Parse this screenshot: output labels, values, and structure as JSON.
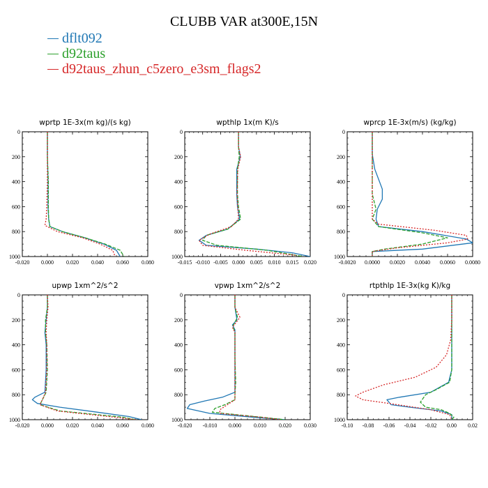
{
  "title": "CLUBB VAR at300E,15N",
  "legend": [
    {
      "name": "dflt092",
      "color": "#1f77b4"
    },
    {
      "name": "d92taus",
      "color": "#2ca02c"
    },
    {
      "name": "d92taus_zhun_c5zero_e3sm_flags2",
      "color": "#d62728"
    }
  ],
  "chart_data": [
    {
      "type": "line",
      "title": "wprtp   1E-3x(m kg)/(s kg)",
      "xlim": [
        -0.02,
        0.08
      ],
      "ylim": [
        1000,
        0
      ],
      "xticks": [
        "-0.020",
        "0.000",
        "0.020",
        "0.040",
        "0.060",
        "0.080"
      ],
      "yticks": [
        "0",
        "200",
        "400",
        "600",
        "800",
        "1000"
      ],
      "series": [
        {
          "points": [
            [
              0.0,
              0
            ],
            [
              0.0,
              200
            ],
            [
              0.0005,
              400
            ],
            [
              0.0005,
              600
            ],
            [
              0.001,
              700
            ],
            [
              0.002,
              760
            ],
            [
              0.012,
              800
            ],
            [
              0.03,
              850
            ],
            [
              0.045,
              900
            ],
            [
              0.055,
              950
            ],
            [
              0.058,
              1000
            ]
          ]
        },
        {
          "points": [
            [
              0.0,
              0
            ],
            [
              0.0,
              200
            ],
            [
              0.0008,
              400
            ],
            [
              0.0008,
              600
            ],
            [
              0.001,
              700
            ],
            [
              0.002,
              760
            ],
            [
              0.012,
              800
            ],
            [
              0.03,
              850
            ],
            [
              0.046,
              900
            ],
            [
              0.058,
              950
            ],
            [
              0.061,
              1000
            ]
          ]
        },
        {
          "points": [
            [
              0.0,
              0
            ],
            [
              0.0,
              200
            ],
            [
              0.0,
              400
            ],
            [
              -0.0005,
              600
            ],
            [
              -0.001,
              700
            ],
            [
              -0.002,
              750
            ],
            [
              0.008,
              800
            ],
            [
              0.028,
              850
            ],
            [
              0.042,
              900
            ],
            [
              0.052,
              950
            ],
            [
              0.054,
              1000
            ]
          ]
        }
      ]
    },
    {
      "type": "line",
      "title": "wpthlp   1x(m K)/s",
      "xlim": [
        -0.015,
        0.02
      ],
      "ylim": [
        1000,
        0
      ],
      "xticks": [
        "-0.015",
        "-0.010",
        "-0.005",
        "0.000",
        "0.005",
        "0.010",
        "0.015",
        "0.020"
      ],
      "yticks": [
        "0",
        "200",
        "400",
        "600",
        "800",
        "1000"
      ],
      "series": [
        {
          "points": [
            [
              0.0,
              0
            ],
            [
              0.0,
              120
            ],
            [
              0.0005,
              200
            ],
            [
              -0.0005,
              300
            ],
            [
              -0.0005,
              500
            ],
            [
              -0.0003,
              600
            ],
            [
              0.0003,
              700
            ],
            [
              -0.003,
              780
            ],
            [
              -0.009,
              830
            ],
            [
              -0.011,
              870
            ],
            [
              -0.009,
              910
            ],
            [
              0.005,
              940
            ],
            [
              0.015,
              970
            ],
            [
              0.02,
              1000
            ]
          ]
        },
        {
          "points": [
            [
              0.0,
              0
            ],
            [
              0.0,
              120
            ],
            [
              0.0002,
              200
            ],
            [
              -0.0003,
              300
            ],
            [
              -0.0003,
              500
            ],
            [
              0.0,
              600
            ],
            [
              0.0006,
              700
            ],
            [
              -0.003,
              780
            ],
            [
              -0.009,
              830
            ],
            [
              -0.01,
              870
            ],
            [
              -0.006,
              910
            ],
            [
              0.008,
              950
            ],
            [
              0.018,
              1000
            ]
          ]
        },
        {
          "points": [
            [
              0.0,
              0
            ],
            [
              0.0,
              120
            ],
            [
              0.0006,
              200
            ],
            [
              -0.0002,
              300
            ],
            [
              -0.0004,
              500
            ],
            [
              -0.0002,
              600
            ],
            [
              0.0,
              700
            ],
            [
              -0.002,
              760
            ],
            [
              -0.008,
              820
            ],
            [
              -0.011,
              870
            ],
            [
              -0.01,
              910
            ],
            [
              0.002,
              950
            ],
            [
              0.016,
              990
            ]
          ]
        }
      ]
    },
    {
      "type": "line",
      "title": "wprcp   1E-3x(m/s) (kg/kg)",
      "xlim": [
        -0.002,
        0.008
      ],
      "ylim": [
        1000,
        0
      ],
      "xticks": [
        "-0.0020",
        "0.0000",
        "0.0020",
        "0.0040",
        "0.0060",
        "0.0080"
      ],
      "yticks": [
        "0",
        "200",
        "400",
        "600",
        "800",
        "1000"
      ],
      "series": [
        {
          "points": [
            [
              0.0,
              0
            ],
            [
              0.0,
              180
            ],
            [
              0.0002,
              300
            ],
            [
              0.0008,
              460
            ],
            [
              0.0008,
              540
            ],
            [
              0.0004,
              620
            ],
            [
              0.0003,
              700
            ],
            [
              0.0005,
              760
            ],
            [
              0.004,
              800
            ],
            [
              0.0075,
              860
            ],
            [
              0.008,
              890
            ],
            [
              0.004,
              940
            ],
            [
              0.0,
              960
            ],
            [
              0.0,
              1000
            ]
          ]
        },
        {
          "points": [
            [
              0.0,
              0
            ],
            [
              0.0,
              180
            ],
            [
              0.0,
              300
            ],
            [
              0.0,
              500
            ],
            [
              0.0003,
              620
            ],
            [
              0.0,
              700
            ],
            [
              0.0005,
              760
            ],
            [
              0.004,
              810
            ],
            [
              0.006,
              850
            ],
            [
              0.004,
              900
            ],
            [
              0.001,
              940
            ],
            [
              0.0,
              960
            ],
            [
              0.0,
              1000
            ]
          ]
        },
        {
          "points": [
            [
              0.0,
              0
            ],
            [
              0.0,
              200
            ],
            [
              0.0,
              400
            ],
            [
              0.0,
              600
            ],
            [
              0.0,
              700
            ],
            [
              0.0005,
              740
            ],
            [
              0.005,
              790
            ],
            [
              0.0075,
              830
            ],
            [
              0.0076,
              860
            ],
            [
              0.006,
              890
            ],
            [
              0.002,
              930
            ],
            [
              0.0,
              960
            ],
            [
              0.0,
              1000
            ]
          ]
        }
      ]
    },
    {
      "type": "line",
      "title": "upwp   1xm^2/s^2",
      "xlim": [
        -0.02,
        0.08
      ],
      "ylim": [
        1000,
        0
      ],
      "xticks": [
        "-0.020",
        "0.000",
        "0.020",
        "0.040",
        "0.060",
        "0.080"
      ],
      "yticks": [
        "0",
        "200",
        "400",
        "600",
        "800",
        "1000"
      ],
      "series": [
        {
          "points": [
            [
              0.0,
              0
            ],
            [
              0.0,
              100
            ],
            [
              -0.001,
              200
            ],
            [
              -0.002,
              300
            ],
            [
              -0.001,
              400
            ],
            [
              -0.001,
              600
            ],
            [
              -0.002,
              780
            ],
            [
              -0.01,
              820
            ],
            [
              -0.012,
              840
            ],
            [
              -0.008,
              870
            ],
            [
              0.01,
              900
            ],
            [
              0.04,
              940
            ],
            [
              0.065,
              975
            ],
            [
              0.075,
              1000
            ]
          ]
        },
        {
          "points": [
            [
              0.0,
              0
            ],
            [
              0.0,
              100
            ],
            [
              -0.0015,
              200
            ],
            [
              -0.0015,
              300
            ],
            [
              -0.0005,
              400
            ],
            [
              0.0,
              600
            ],
            [
              -0.001,
              780
            ],
            [
              -0.004,
              840
            ],
            [
              -0.006,
              880
            ],
            [
              0.01,
              930
            ],
            [
              0.04,
              960
            ],
            [
              0.06,
              980
            ],
            [
              0.07,
              1000
            ]
          ]
        },
        {
          "points": [
            [
              0.0,
              0
            ],
            [
              0.0005,
              100
            ],
            [
              -0.0005,
              200
            ],
            [
              -0.001,
              300
            ],
            [
              -0.0005,
              400
            ],
            [
              -0.0005,
              600
            ],
            [
              -0.0015,
              780
            ],
            [
              -0.004,
              840
            ],
            [
              -0.006,
              880
            ],
            [
              0.008,
              930
            ],
            [
              0.035,
              960
            ],
            [
              0.058,
              985
            ],
            [
              0.07,
              1000
            ]
          ]
        }
      ]
    },
    {
      "type": "line",
      "title": "vpwp   1xm^2/s^2",
      "xlim": [
        -0.02,
        0.03
      ],
      "ylim": [
        1000,
        0
      ],
      "xticks": [
        "-0.020",
        "-0.010",
        "0.000",
        "0.010",
        "0.020",
        "0.030"
      ],
      "yticks": [
        "0",
        "200",
        "400",
        "600",
        "800",
        "1000"
      ],
      "series": [
        {
          "points": [
            [
              0.0,
              0
            ],
            [
              0.0,
              100
            ],
            [
              0.0008,
              200
            ],
            [
              -0.001,
              240
            ],
            [
              0.0,
              280
            ],
            [
              0.0,
              400
            ],
            [
              0.0,
              700
            ],
            [
              0.0,
              780
            ],
            [
              -0.005,
              820
            ],
            [
              -0.012,
              850
            ],
            [
              -0.018,
              880
            ],
            [
              -0.019,
              910
            ],
            [
              -0.01,
              950
            ],
            [
              0.01,
              985
            ],
            [
              0.02,
              1000
            ]
          ]
        },
        {
          "points": [
            [
              0.0,
              0
            ],
            [
              0.0,
              100
            ],
            [
              0.001,
              180
            ],
            [
              -0.0008,
              250
            ],
            [
              0.0,
              300
            ],
            [
              0.0,
              500
            ],
            [
              0.0003,
              700
            ],
            [
              0.0,
              800
            ],
            [
              0.0,
              840
            ],
            [
              -0.004,
              880
            ],
            [
              -0.008,
              910
            ],
            [
              -0.009,
              940
            ],
            [
              0.008,
              975
            ],
            [
              0.02,
              1000
            ]
          ]
        },
        {
          "points": [
            [
              0.0,
              0
            ],
            [
              0.0,
              100
            ],
            [
              0.002,
              180
            ],
            [
              -0.001,
              260
            ],
            [
              0.0,
              300
            ],
            [
              0.0,
              500
            ],
            [
              0.0,
              700
            ],
            [
              0.0,
              780
            ],
            [
              0.0,
              840
            ],
            [
              -0.003,
              880
            ],
            [
              -0.006,
              920
            ],
            [
              -0.006,
              950
            ],
            [
              0.01,
              980
            ],
            [
              0.018,
              1000
            ]
          ]
        }
      ]
    },
    {
      "type": "line",
      "title": "rtpthlp   1E-3x(kg K)/kg",
      "xlim": [
        -0.1,
        0.02
      ],
      "ylim": [
        1000,
        0
      ],
      "xticks": [
        "-0.10",
        "-0.08",
        "-0.06",
        "-0.04",
        "-0.02",
        "0.00",
        "0.02"
      ],
      "yticks": [
        "0",
        "200",
        "400",
        "600",
        "800",
        "1000"
      ],
      "series": [
        {
          "points": [
            [
              0.0,
              0
            ],
            [
              0.0,
              200
            ],
            [
              0.0,
              400
            ],
            [
              0.0,
              600
            ],
            [
              -0.003,
              700
            ],
            [
              -0.02,
              780
            ],
            [
              -0.05,
              820
            ],
            [
              -0.062,
              840
            ],
            [
              -0.058,
              880
            ],
            [
              -0.04,
              900
            ],
            [
              -0.01,
              930
            ],
            [
              0.0,
              960
            ],
            [
              0.0,
              1000
            ]
          ]
        },
        {
          "points": [
            [
              0.0,
              0
            ],
            [
              0.0,
              200
            ],
            [
              0.0,
              400
            ],
            [
              0.0,
              600
            ],
            [
              -0.002,
              700
            ],
            [
              -0.015,
              760
            ],
            [
              -0.025,
              800
            ],
            [
              -0.03,
              860
            ],
            [
              -0.025,
              900
            ],
            [
              -0.01,
              920
            ],
            [
              -0.002,
              950
            ],
            [
              0.002,
              980
            ],
            [
              0.0,
              1000
            ]
          ]
        },
        {
          "points": [
            [
              0.0,
              0
            ],
            [
              0.0,
              200
            ],
            [
              -0.001,
              360
            ],
            [
              -0.005,
              480
            ],
            [
              -0.015,
              580
            ],
            [
              -0.035,
              660
            ],
            [
              -0.065,
              720
            ],
            [
              -0.085,
              780
            ],
            [
              -0.092,
              810
            ],
            [
              -0.085,
              840
            ],
            [
              -0.06,
              870
            ],
            [
              -0.02,
              920
            ],
            [
              -0.002,
              960
            ],
            [
              0.0,
              1000
            ]
          ]
        }
      ]
    }
  ]
}
